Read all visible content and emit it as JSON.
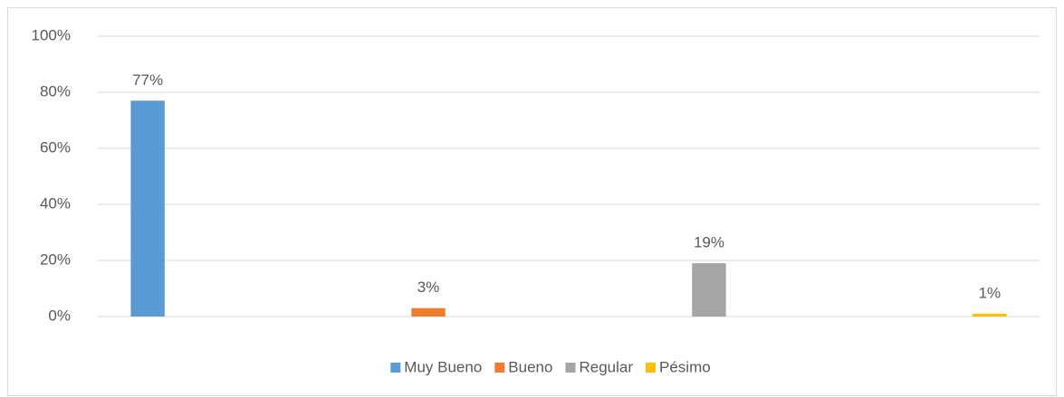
{
  "chart_data": {
    "type": "bar",
    "categories": [
      null
    ],
    "series": [
      {
        "name": "Muy Bueno",
        "color": "#5b9bd5",
        "values": [
          77
        ],
        "value_labels": [
          "77%"
        ]
      },
      {
        "name": "Bueno",
        "color": "#ed7d31",
        "values": [
          3
        ],
        "value_labels": [
          "3%"
        ]
      },
      {
        "name": "Regular",
        "color": "#a5a5a5",
        "values": [
          19
        ],
        "value_labels": [
          "19%"
        ]
      },
      {
        "name": "Pésimo",
        "color": "#ffc000",
        "values": [
          1
        ],
        "value_labels": [
          "1%"
        ]
      }
    ],
    "ylim": [
      0,
      100
    ],
    "yticks": [
      {
        "value": 0,
        "label": "0%"
      },
      {
        "value": 20,
        "label": "20%"
      },
      {
        "value": 40,
        "label": "40%"
      },
      {
        "value": 60,
        "label": "60%"
      },
      {
        "value": 80,
        "label": "80%"
      },
      {
        "value": 100,
        "label": "100%"
      }
    ],
    "grid": true,
    "legend": "bottom"
  }
}
